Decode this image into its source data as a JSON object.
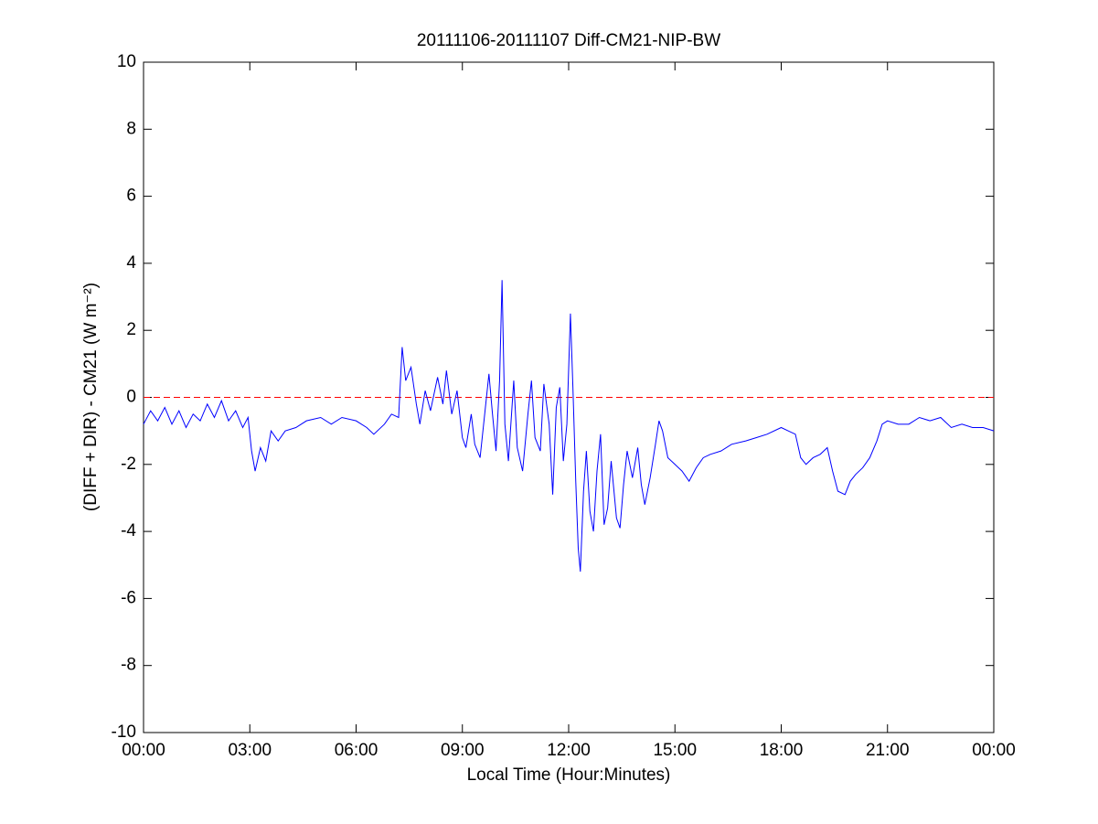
{
  "chart_data": {
    "type": "line",
    "title": "20111106-20111107 Diff-CM21-NIP-BW",
    "xlabel": "Local Time (Hour:Minutes)",
    "ylabel": "(DIFF + DIR) - CM21 (W m⁻²)",
    "x": [
      0,
      0.2,
      0.4,
      0.6,
      0.8,
      1.0,
      1.2,
      1.4,
      1.6,
      1.8,
      2.0,
      2.2,
      2.4,
      2.6,
      2.8,
      2.95,
      3.05,
      3.15,
      3.3,
      3.45,
      3.6,
      3.8,
      4.0,
      4.3,
      4.6,
      5.0,
      5.3,
      5.6,
      6.0,
      6.3,
      6.5,
      6.8,
      7.0,
      7.2,
      7.3,
      7.4,
      7.55,
      7.7,
      7.8,
      7.95,
      8.1,
      8.3,
      8.45,
      8.55,
      8.7,
      8.85,
      9.0,
      9.1,
      9.25,
      9.35,
      9.5,
      9.6,
      9.75,
      9.85,
      9.95,
      10.05,
      10.12,
      10.2,
      10.3,
      10.45,
      10.55,
      10.7,
      10.85,
      10.95,
      11.05,
      11.2,
      11.3,
      11.45,
      11.55,
      11.65,
      11.75,
      11.85,
      11.95,
      12.05,
      12.12,
      12.2,
      12.27,
      12.33,
      12.42,
      12.5,
      12.6,
      12.7,
      12.8,
      12.9,
      13.0,
      13.1,
      13.2,
      13.35,
      13.45,
      13.55,
      13.65,
      13.8,
      13.95,
      14.05,
      14.15,
      14.3,
      14.45,
      14.55,
      14.65,
      14.8,
      15.0,
      15.2,
      15.4,
      15.6,
      15.8,
      16.0,
      16.3,
      16.6,
      17.0,
      17.3,
      17.6,
      18.0,
      18.2,
      18.4,
      18.55,
      18.7,
      18.9,
      19.1,
      19.3,
      19.45,
      19.6,
      19.8,
      19.95,
      20.1,
      20.3,
      20.5,
      20.7,
      20.85,
      21.0,
      21.3,
      21.6,
      21.9,
      22.2,
      22.5,
      22.8,
      23.1,
      23.4,
      23.7,
      24.0
    ],
    "series": [
      {
        "color": "#0000ff",
        "values": [
          -0.8,
          -0.4,
          -0.7,
          -0.3,
          -0.8,
          -0.4,
          -0.9,
          -0.5,
          -0.7,
          -0.2,
          -0.6,
          -0.1,
          -0.7,
          -0.4,
          -0.9,
          -0.6,
          -1.6,
          -2.2,
          -1.5,
          -1.9,
          -1.0,
          -1.3,
          -1.0,
          -0.9,
          -0.7,
          -0.6,
          -0.8,
          -0.6,
          -0.7,
          -0.9,
          -1.1,
          -0.8,
          -0.5,
          -0.6,
          1.5,
          0.5,
          0.9,
          -0.2,
          -0.8,
          0.2,
          -0.4,
          0.6,
          -0.2,
          0.8,
          -0.5,
          0.2,
          -1.2,
          -1.5,
          -0.5,
          -1.4,
          -1.8,
          -0.8,
          0.7,
          -0.5,
          -1.6,
          0.5,
          3.5,
          -0.8,
          -1.9,
          0.5,
          -1.5,
          -2.2,
          -0.5,
          0.5,
          -1.2,
          -1.6,
          0.4,
          -0.8,
          -2.9,
          -0.3,
          0.3,
          -1.9,
          -0.8,
          2.5,
          0.3,
          -2.5,
          -4.5,
          -5.2,
          -2.8,
          -1.6,
          -3.4,
          -4.0,
          -2.2,
          -1.1,
          -3.8,
          -3.3,
          -1.9,
          -3.6,
          -3.9,
          -2.6,
          -1.6,
          -2.4,
          -1.5,
          -2.6,
          -3.2,
          -2.4,
          -1.4,
          -0.7,
          -1.0,
          -1.8,
          -2.0,
          -2.2,
          -2.5,
          -2.1,
          -1.8,
          -1.7,
          -1.6,
          -1.4,
          -1.3,
          -1.2,
          -1.1,
          -0.9,
          -1.0,
          -1.1,
          -1.8,
          -2.0,
          -1.8,
          -1.7,
          -1.5,
          -2.2,
          -2.8,
          -2.9,
          -2.5,
          -2.3,
          -2.1,
          -1.8,
          -1.3,
          -0.8,
          -0.7,
          -0.8,
          -0.8,
          -0.6,
          -0.7,
          -0.6,
          -0.9,
          -0.8,
          -0.9,
          -0.9,
          -1.0
        ]
      }
    ],
    "reference_line": {
      "value": 0,
      "color": "#ff0000",
      "style": "dashed"
    },
    "xlim": [
      0,
      24
    ],
    "xticks": [
      {
        "value": 0,
        "label": "00:00"
      },
      {
        "value": 3,
        "label": "03:00"
      },
      {
        "value": 6,
        "label": "06:00"
      },
      {
        "value": 9,
        "label": "09:00"
      },
      {
        "value": 12,
        "label": "12:00"
      },
      {
        "value": 15,
        "label": "15:00"
      },
      {
        "value": 18,
        "label": "18:00"
      },
      {
        "value": 21,
        "label": "21:00"
      },
      {
        "value": 24,
        "label": "00:00"
      }
    ],
    "ylim": [
      -10,
      10
    ],
    "yticks": [
      -10,
      -8,
      -6,
      -4,
      -2,
      0,
      2,
      4,
      6,
      8,
      10
    ],
    "grid": false
  }
}
